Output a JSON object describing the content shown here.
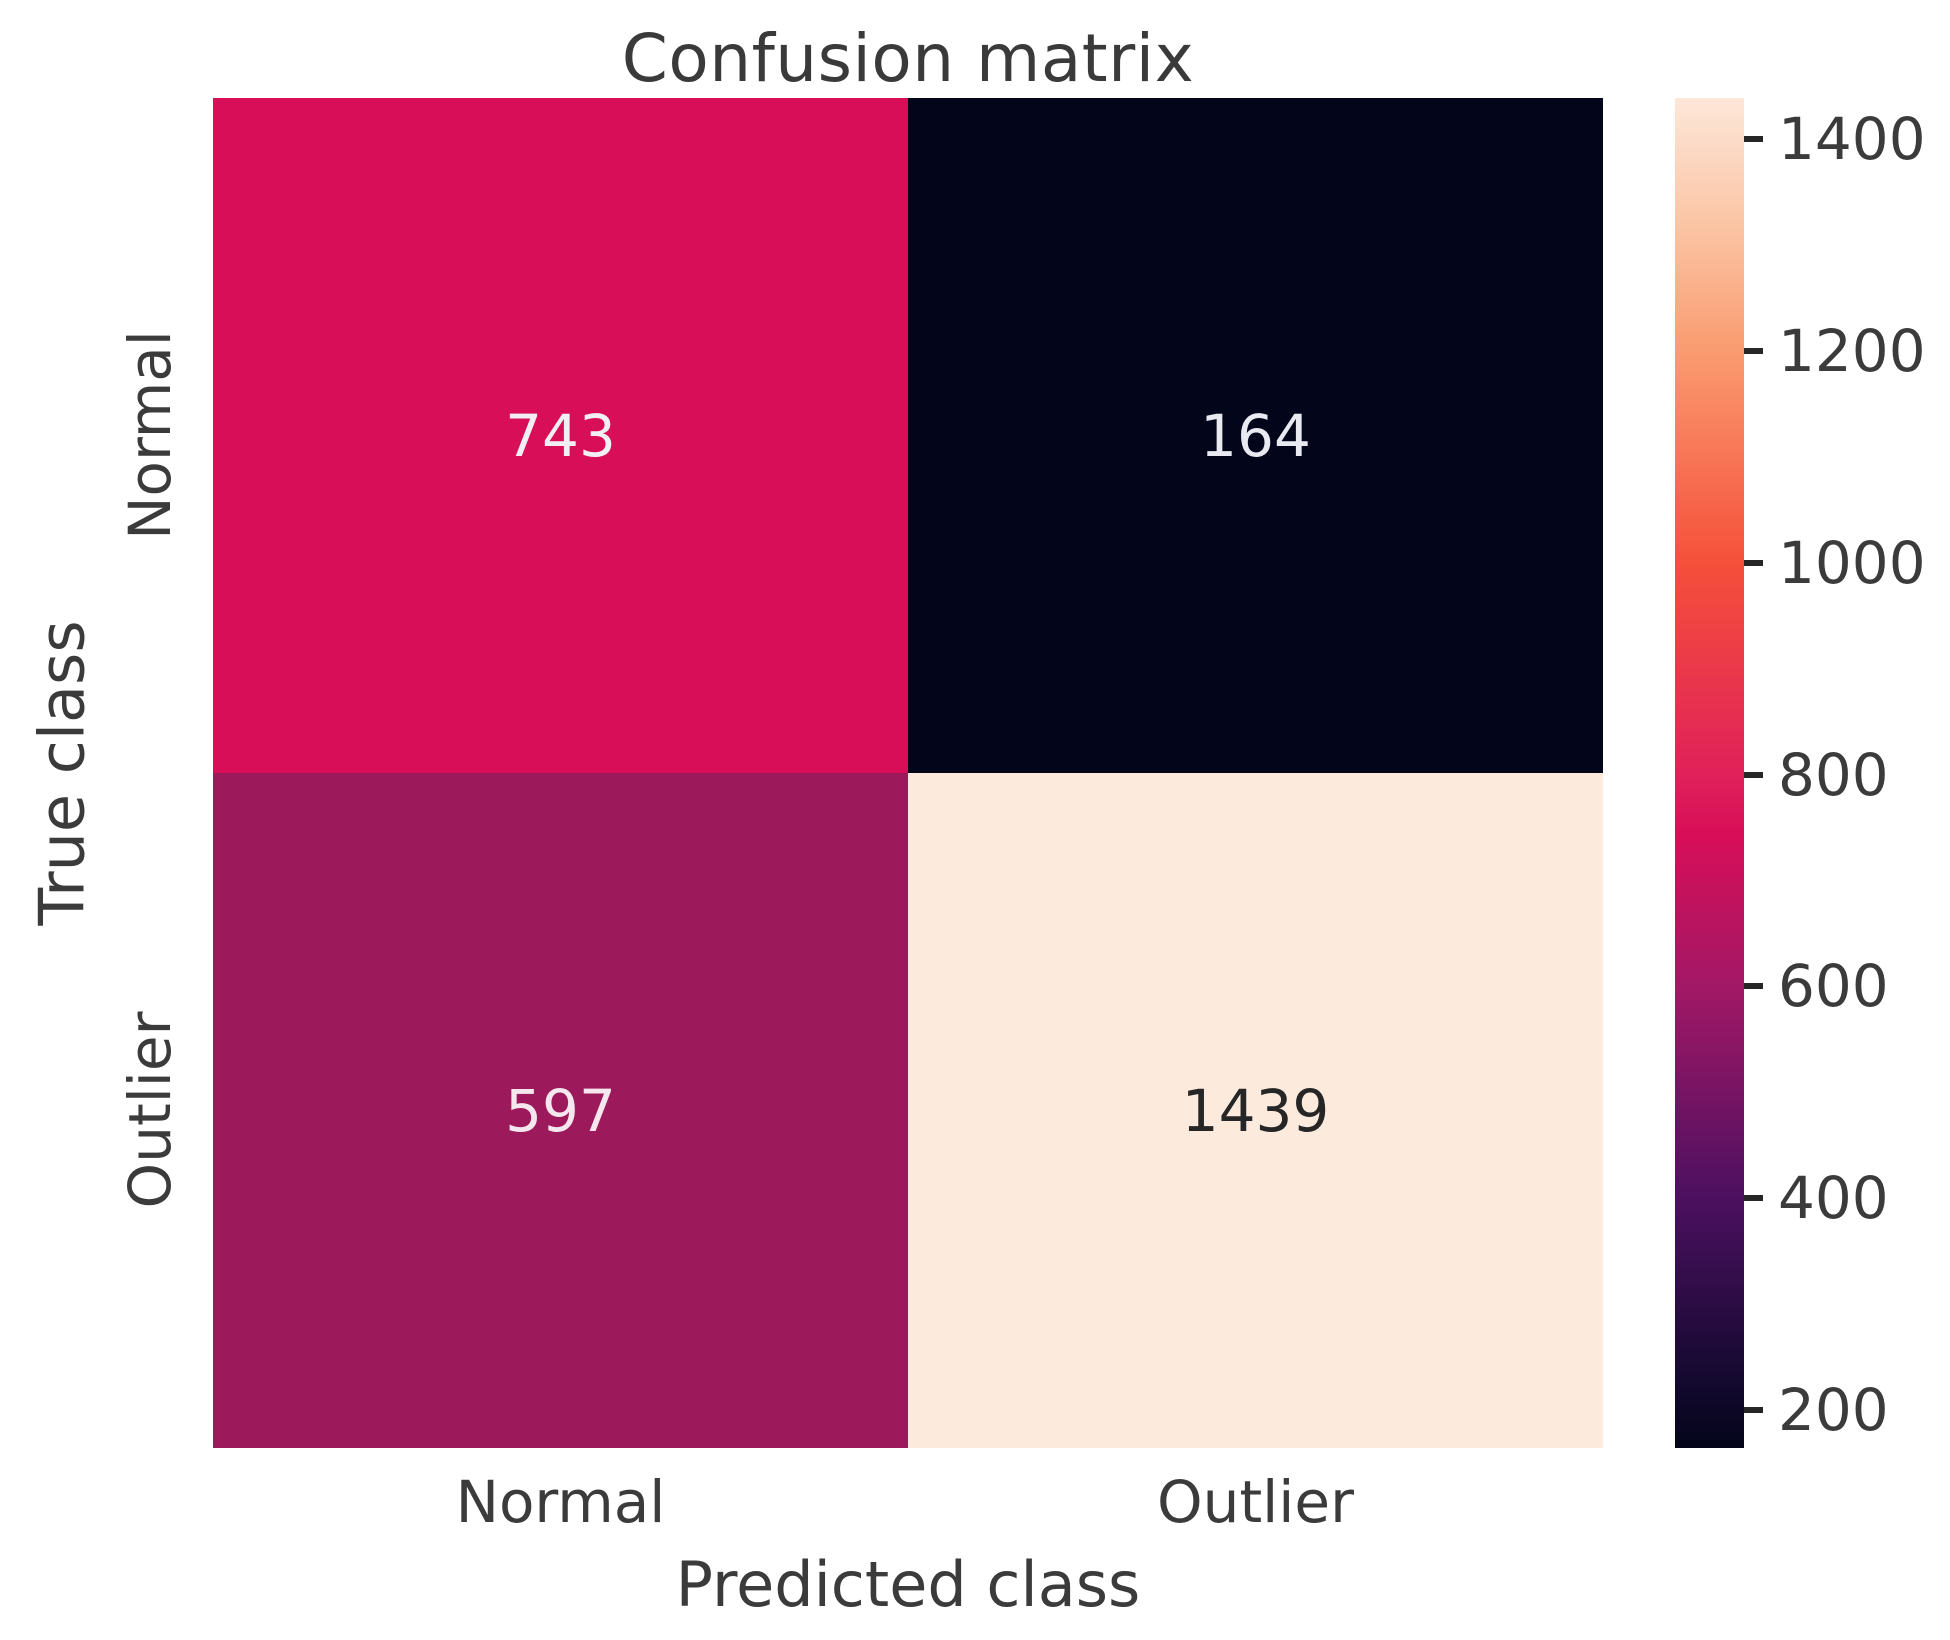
{
  "chart_data": {
    "type": "heatmap",
    "title": "Confusion matrix",
    "xlabel": "Predicted class",
    "ylabel": "True class",
    "x_categories": [
      "Normal",
      "Outlier"
    ],
    "y_categories": [
      "Normal",
      "Outlier"
    ],
    "matrix": [
      [
        743,
        164
      ],
      [
        597,
        1439
      ]
    ],
    "vmin": 164,
    "vmax": 1439,
    "colormap": "rocket",
    "colorbar_ticks": [
      1400,
      1200,
      1000,
      800,
      600,
      400,
      200
    ],
    "cell_colors": [
      [
        "#D80E58",
        "#03051A"
      ],
      [
        "#9C195C",
        "#FCEADD"
      ]
    ],
    "annot_colors": [
      [
        "#F2EFF4",
        "#E9E9F2"
      ],
      [
        "#F5E7ED",
        "#262626"
      ]
    ],
    "colorbar_gradient_stops": [
      {
        "value": 164,
        "color": "#03051A"
      },
      {
        "value": 230,
        "color": "#150930"
      },
      {
        "value": 400,
        "color": "#4C1060"
      },
      {
        "value": 600,
        "color": "#A21866"
      },
      {
        "value": 743,
        "color": "#D80E58"
      },
      {
        "value": 800,
        "color": "#E0215A"
      },
      {
        "value": 1000,
        "color": "#F5503A"
      },
      {
        "value": 1200,
        "color": "#FA9B70"
      },
      {
        "value": 1320,
        "color": "#FBC5A5"
      },
      {
        "value": 1439,
        "color": "#FDE7D9"
      }
    ],
    "legend_position": "right",
    "grid": false
  },
  "colors": {
    "background": "#FFFFFF",
    "title_text": "#3A3A3A",
    "axis_text": "#3B3B3B",
    "tick_mark": "#262626"
  }
}
